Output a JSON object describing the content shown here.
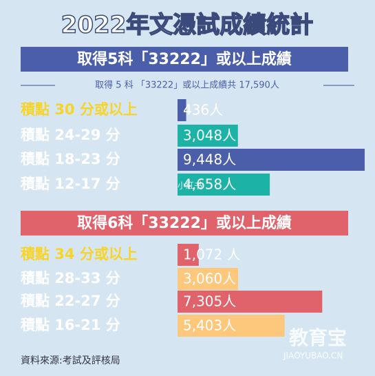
{
  "title": "2022年文憑試成績統計",
  "source": "資料來源:考試及評核局",
  "watermarks": [
    "小紅书",
    "教育宝",
    "JIAOYUBAO.CN"
  ],
  "chart_data": [
    {
      "type": "bar",
      "orientation": "horizontal",
      "heading": "取得5科「33222」或以上成績",
      "heading_color": "#4b5ea9",
      "subtitle": "取得 5 科 「33222」或以上成績共 17,590人",
      "categories": [
        "積點 30 分或以上",
        "積點 24-29 分",
        "積點 18-23 分",
        "積點 12-17 分"
      ],
      "category_colors": [
        "#f7d428",
        "#ffffff",
        "#ffffff",
        "#ffffff"
      ],
      "values": [
        436,
        3048,
        9448,
        4658
      ],
      "value_labels": [
        "436人",
        "3,048人",
        "9,448人",
        "4,658人"
      ],
      "colors": [
        "#4b5ea9",
        "#1cb3a6",
        "#4b5ea9",
        "#1cb3a6"
      ]
    },
    {
      "type": "bar",
      "orientation": "horizontal",
      "heading": "取得6科「33222」或以上成績",
      "heading_color": "#e0626b",
      "categories": [
        "積點 34 分或以上",
        "積點 28-33 分",
        "積點 22-27 分",
        "積點 16-21 分"
      ],
      "category_colors": [
        "#f7d428",
        "#ffffff",
        "#ffffff",
        "#ffffff"
      ],
      "values": [
        1072,
        3060,
        7305,
        5403
      ],
      "value_labels": [
        "1,072 人",
        "3,060人",
        "7,305人",
        "5,403人"
      ],
      "colors": [
        "#e0626b",
        "#fdc77c",
        "#e0626b",
        "#fdc77c"
      ]
    }
  ]
}
